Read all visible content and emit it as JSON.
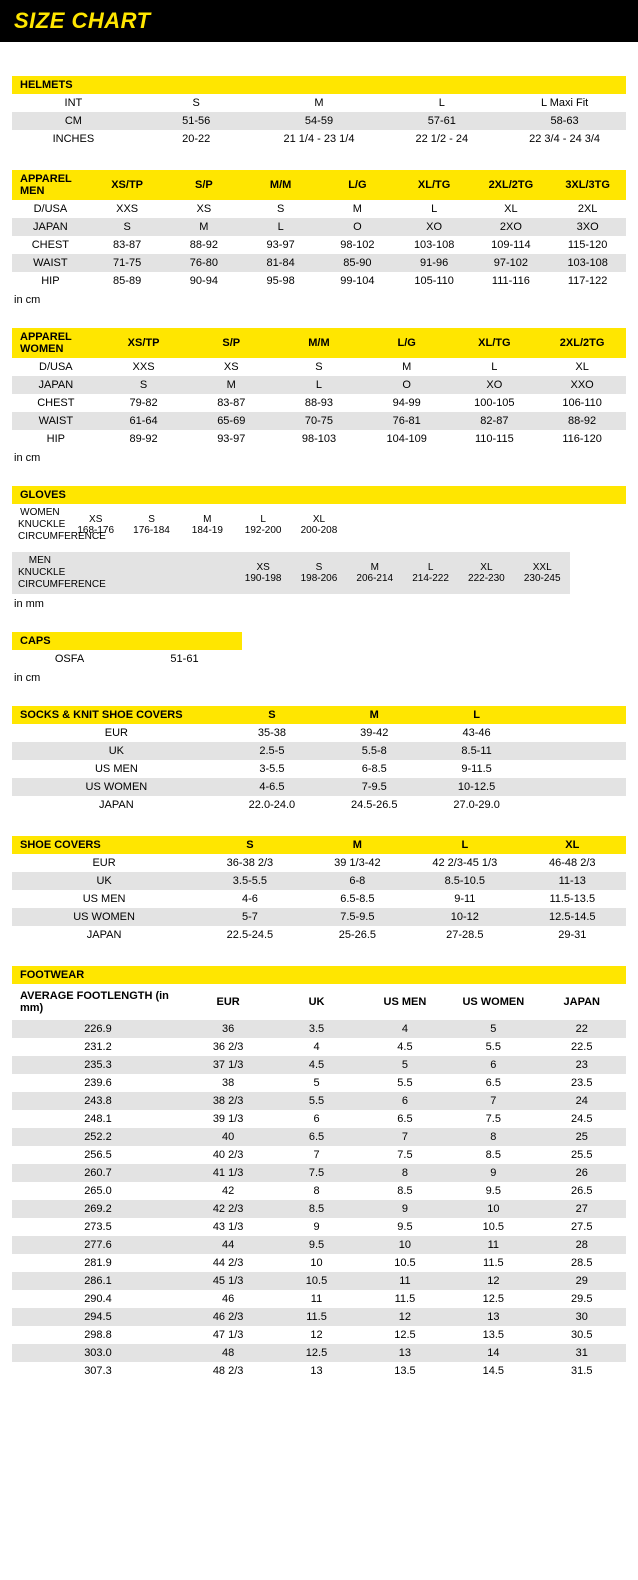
{
  "title": "SIZE CHART",
  "unit_cm": "in cm",
  "unit_mm": "in mm",
  "helmets": {
    "header": "HELMETS",
    "rows": [
      {
        "label": "INT",
        "vals": [
          "S",
          "M",
          "L",
          "L Maxi Fit"
        ]
      },
      {
        "label": "CM",
        "vals": [
          "51-56",
          "54-59",
          "57-61",
          "58-63"
        ]
      },
      {
        "label": "INCHES",
        "vals": [
          "20-22",
          "21 1/4 - 23 1/4",
          "22 1/2 - 24",
          "22 3/4 - 24 3/4"
        ]
      }
    ]
  },
  "apparel_men": {
    "header": "APPAREL MEN",
    "sizes": [
      "XS/TP",
      "S/P",
      "M/M",
      "L/G",
      "XL/TG",
      "2XL/2TG",
      "3XL/3TG"
    ],
    "rows": [
      {
        "label": "D/USA",
        "vals": [
          "XXS",
          "XS",
          "S",
          "M",
          "L",
          "XL",
          "2XL"
        ]
      },
      {
        "label": "JAPAN",
        "vals": [
          "S",
          "M",
          "L",
          "O",
          "XO",
          "2XO",
          "3XO"
        ]
      },
      {
        "label": "CHEST",
        "vals": [
          "83-87",
          "88-92",
          "93-97",
          "98-102",
          "103-108",
          "109-114",
          "115-120"
        ]
      },
      {
        "label": "WAIST",
        "vals": [
          "71-75",
          "76-80",
          "81-84",
          "85-90",
          "91-96",
          "97-102",
          "103-108"
        ]
      },
      {
        "label": "HIP",
        "vals": [
          "85-89",
          "90-94",
          "95-98",
          "99-104",
          "105-110",
          "111-116",
          "117-122"
        ]
      }
    ]
  },
  "apparel_women": {
    "header": "APPAREL WOMEN",
    "sizes": [
      "XS/TP",
      "S/P",
      "M/M",
      "L/G",
      "XL/TG",
      "2XL/2TG"
    ],
    "rows": [
      {
        "label": "D/USA",
        "vals": [
          "XXS",
          "XS",
          "S",
          "M",
          "L",
          "XL"
        ]
      },
      {
        "label": "JAPAN",
        "vals": [
          "S",
          "M",
          "L",
          "O",
          "XO",
          "XXO"
        ]
      },
      {
        "label": "CHEST",
        "vals": [
          "79-82",
          "83-87",
          "88-93",
          "94-99",
          "100-105",
          "106-110"
        ]
      },
      {
        "label": "WAIST",
        "vals": [
          "61-64",
          "65-69",
          "70-75",
          "76-81",
          "82-87",
          "88-92"
        ]
      },
      {
        "label": "HIP",
        "vals": [
          "89-92",
          "93-97",
          "98-103",
          "104-109",
          "110-115",
          "116-120"
        ]
      }
    ]
  },
  "gloves": {
    "header": "GLOVES",
    "women": {
      "label1": "WOMEN",
      "label2": "KNUCKLE CIRCUMFERENCE",
      "cols": [
        "XS",
        "S",
        "M",
        "L",
        "XL",
        "",
        "",
        "",
        "",
        ""
      ],
      "vals": [
        "168-176",
        "176-184",
        "184-19",
        "192-200",
        "200-208",
        "",
        "",
        "",
        "",
        ""
      ]
    },
    "men": {
      "label1": "MEN",
      "label2": "KNUCKLE CIRCUMFERENCE",
      "cols": [
        "",
        "",
        "",
        "XS",
        "S",
        "M",
        "L",
        "XL",
        "XXL"
      ],
      "vals": [
        "",
        "",
        "",
        "190-198",
        "198-206",
        "206-214",
        "214-222",
        "222-230",
        "230-245"
      ]
    }
  },
  "caps": {
    "header": "CAPS",
    "label": "OSFA",
    "val": "51-61"
  },
  "socks": {
    "header": "SOCKS & KNIT SHOE COVERS",
    "sizes": [
      "S",
      "M",
      "L"
    ],
    "rows": [
      {
        "label": "EUR",
        "vals": [
          "35-38",
          "39-42",
          "43-46"
        ]
      },
      {
        "label": "UK",
        "vals": [
          "2.5-5",
          "5.5-8",
          "8.5-11"
        ]
      },
      {
        "label": "US MEN",
        "vals": [
          "3-5.5",
          "6-8.5",
          "9-11.5"
        ]
      },
      {
        "label": "US WOMEN",
        "vals": [
          "4-6.5",
          "7-9.5",
          "10-12.5"
        ]
      },
      {
        "label": "JAPAN",
        "vals": [
          "22.0-24.0",
          "24.5-26.5",
          "27.0-29.0"
        ]
      }
    ]
  },
  "shoe_covers": {
    "header": "SHOE COVERS",
    "sizes": [
      "S",
      "M",
      "L",
      "XL"
    ],
    "rows": [
      {
        "label": "EUR",
        "vals": [
          "36-38 2/3",
          "39 1/3-42",
          "42 2/3-45 1/3",
          "46-48 2/3"
        ]
      },
      {
        "label": "UK",
        "vals": [
          "3.5-5.5",
          "6-8",
          "8.5-10.5",
          "11-13"
        ]
      },
      {
        "label": "US MEN",
        "vals": [
          "4-6",
          "6.5-8.5",
          "9-11",
          "11.5-13.5"
        ]
      },
      {
        "label": "US WOMEN",
        "vals": [
          "5-7",
          "7.5-9.5",
          "10-12",
          "12.5-14.5"
        ]
      },
      {
        "label": "JAPAN",
        "vals": [
          "22.5-24.5",
          "25-26.5",
          "27-28.5",
          "29-31"
        ]
      }
    ]
  },
  "footwear": {
    "header": "FOOTWEAR",
    "sub": [
      "AVERAGE FOOTLENGTH (in mm)",
      "EUR",
      "UK",
      "US MEN",
      "US WOMEN",
      "JAPAN"
    ],
    "rows": [
      [
        "226.9",
        "36",
        "3.5",
        "4",
        "5",
        "22"
      ],
      [
        "231.2",
        "36 2/3",
        "4",
        "4.5",
        "5.5",
        "22.5"
      ],
      [
        "235.3",
        "37 1/3",
        "4.5",
        "5",
        "6",
        "23"
      ],
      [
        "239.6",
        "38",
        "5",
        "5.5",
        "6.5",
        "23.5"
      ],
      [
        "243.8",
        "38 2/3",
        "5.5",
        "6",
        "7",
        "24"
      ],
      [
        "248.1",
        "39 1/3",
        "6",
        "6.5",
        "7.5",
        "24.5"
      ],
      [
        "252.2",
        "40",
        "6.5",
        "7",
        "8",
        "25"
      ],
      [
        "256.5",
        "40 2/3",
        "7",
        "7.5",
        "8.5",
        "25.5"
      ],
      [
        "260.7",
        "41 1/3",
        "7.5",
        "8",
        "9",
        "26"
      ],
      [
        "265.0",
        "42",
        "8",
        "8.5",
        "9.5",
        "26.5"
      ],
      [
        "269.2",
        "42 2/3",
        "8.5",
        "9",
        "10",
        "27"
      ],
      [
        "273.5",
        "43 1/3",
        "9",
        "9.5",
        "10.5",
        "27.5"
      ],
      [
        "277.6",
        "44",
        "9.5",
        "10",
        "11",
        "28"
      ],
      [
        "281.9",
        "44 2/3",
        "10",
        "10.5",
        "11.5",
        "28.5"
      ],
      [
        "286.1",
        "45 1/3",
        "10.5",
        "11",
        "12",
        "29"
      ],
      [
        "290.4",
        "46",
        "11",
        "11.5",
        "12.5",
        "29.5"
      ],
      [
        "294.5",
        "46 2/3",
        "11.5",
        "12",
        "13",
        "30"
      ],
      [
        "298.8",
        "47 1/3",
        "12",
        "12.5",
        "13.5",
        "30.5"
      ],
      [
        "303.0",
        "48",
        "12.5",
        "13",
        "14",
        "31"
      ],
      [
        "307.3",
        "48 2/3",
        "13",
        "13.5",
        "14.5",
        "31.5"
      ]
    ]
  }
}
